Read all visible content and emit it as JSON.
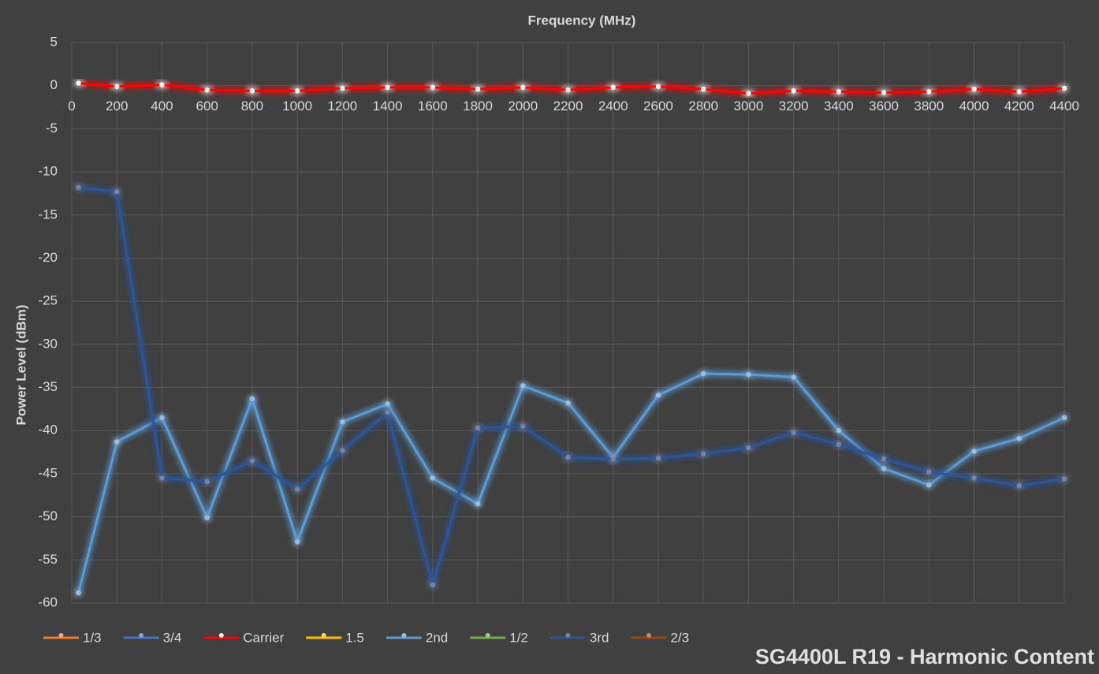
{
  "chart_data": {
    "type": "line",
    "title": "SG4400L R19 - Harmonic Content",
    "x_label": "Frequency (MHz)",
    "y_label": "Power Level (dBm)",
    "x": [
      30,
      200,
      400,
      600,
      800,
      1000,
      1200,
      1400,
      1600,
      1800,
      2000,
      2200,
      2400,
      2600,
      2800,
      3000,
      3200,
      3400,
      3600,
      3800,
      4000,
      4200,
      4400
    ],
    "xlim": [
      0,
      4400
    ],
    "xticks": [
      0,
      200,
      400,
      600,
      800,
      1000,
      1200,
      1400,
      1600,
      1800,
      2000,
      2200,
      2400,
      2600,
      2800,
      3000,
      3200,
      3400,
      3600,
      3800,
      4000,
      4200,
      4400
    ],
    "ylim": [
      -60,
      5
    ],
    "yticks": [
      5,
      0,
      -5,
      -10,
      -15,
      -20,
      -25,
      -30,
      -35,
      -40,
      -45,
      -50,
      -55,
      -60
    ],
    "grid": true,
    "legend": "bottom-left",
    "series": [
      {
        "name": "1/3",
        "color": "#ed7d31",
        "values": [
          null,
          null,
          null,
          null,
          null,
          null,
          null,
          null,
          null,
          null,
          null,
          null,
          null,
          null,
          null,
          null,
          null,
          null,
          null,
          null,
          null,
          null,
          null
        ]
      },
      {
        "name": "3/4",
        "color": "#4472c4",
        "values": [
          null,
          null,
          null,
          null,
          null,
          null,
          null,
          null,
          null,
          null,
          null,
          null,
          null,
          null,
          null,
          null,
          null,
          null,
          null,
          null,
          null,
          null,
          null
        ]
      },
      {
        "name": "Carrier",
        "color": "#ff0000",
        "values": [
          0.3,
          -0.1,
          0.1,
          -0.5,
          -0.6,
          -0.6,
          -0.3,
          -0.2,
          -0.2,
          -0.4,
          -0.2,
          -0.5,
          -0.2,
          -0.1,
          -0.4,
          -0.9,
          -0.6,
          -0.7,
          -0.8,
          -0.7,
          -0.4,
          -0.7,
          -0.3
        ]
      },
      {
        "name": "1.5",
        "color": "#ffc000",
        "values": [
          null,
          null,
          null,
          null,
          null,
          null,
          null,
          null,
          null,
          null,
          null,
          null,
          null,
          null,
          null,
          null,
          null,
          null,
          null,
          null,
          null,
          null,
          null
        ]
      },
      {
        "name": "2nd",
        "color": "#5b9bd5",
        "values": [
          -58.8,
          -41.3,
          -38.5,
          -50.1,
          -36.3,
          -52.9,
          -39.0,
          -36.9,
          -45.5,
          -48.5,
          -34.8,
          -36.8,
          -43.1,
          -35.9,
          -33.4,
          -33.5,
          -33.8,
          -40.0,
          -44.4,
          -46.3,
          -42.4,
          -40.9,
          -38.5
        ]
      },
      {
        "name": "1/2",
        "color": "#70ad47",
        "values": [
          null,
          null,
          null,
          null,
          null,
          null,
          null,
          null,
          null,
          null,
          null,
          null,
          null,
          null,
          null,
          null,
          null,
          null,
          null,
          null,
          null,
          null,
          null
        ]
      },
      {
        "name": "3rd",
        "color": "#264478",
        "values": [
          -11.8,
          -12.3,
          -45.5,
          -45.9,
          -43.5,
          -46.8,
          -42.3,
          -37.9,
          -57.9,
          -39.7,
          -39.5,
          -43.1,
          -43.3,
          -43.2,
          -42.7,
          -42.0,
          -40.2,
          -41.6,
          -43.3,
          -44.8,
          -45.5,
          -46.4,
          -45.6
        ]
      },
      {
        "name": "2/3",
        "color": "#9e480e",
        "values": [
          null,
          null,
          null,
          null,
          null,
          null,
          null,
          null,
          null,
          null,
          null,
          null,
          null,
          null,
          null,
          null,
          null,
          null,
          null,
          null,
          null,
          null,
          null
        ]
      }
    ]
  }
}
